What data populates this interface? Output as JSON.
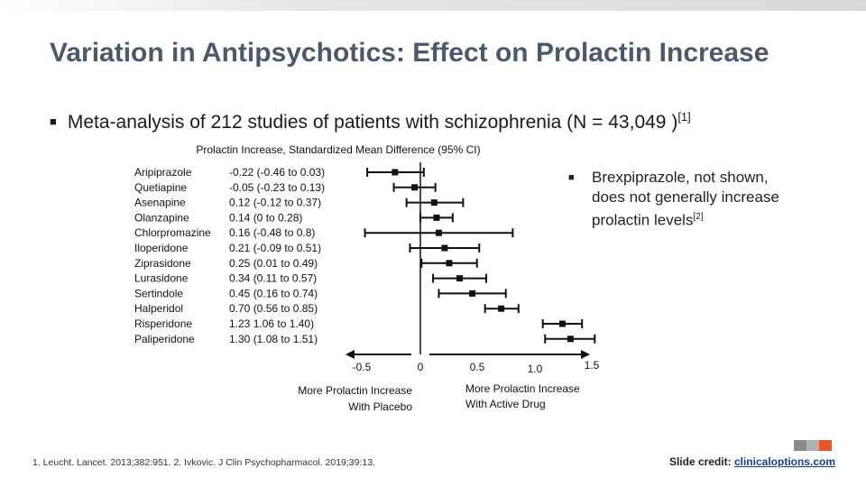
{
  "slide": {
    "title": "Variation in Antipsychotics: Effect on Prolactin Increase",
    "bullet_text": "Meta-analysis of 212 studies of patients with schizophrenia (N = 43,049 )",
    "bullet_ref": "[1]",
    "side_note_text": "Brexpiprazole, not shown, does not generally increase prolactin levels",
    "side_note_ref": "[2]",
    "footnote": "1. Leucht. Lancet. 2013;382:951. 2. Ivkovic. J Clin Psychopharmacol. 2019;39:13.",
    "credit_label": "Slide credit: ",
    "credit_link": "clinicaloptions.com",
    "logo_colors": [
      "#8a8a8a",
      "#b0b0b0",
      "#e8542c"
    ]
  },
  "chart_data": {
    "type": "forest",
    "title": "Prolactin Increase, Standardized Mean Difference (95% CI)",
    "drugs": [
      "Aripiprazole",
      "Quetiapine",
      "Asenapine",
      "Olanzapine",
      "Chlorpromazine",
      "Iloperidone",
      "Ziprasidone",
      "Lurasidone",
      "Sertindole",
      "Halperidol",
      "Risperidone",
      "Paliperidone"
    ],
    "ci_labels": [
      "-0.22 (-0.46 to 0.03)",
      "-0.05 (-0.23 to 0.13)",
      "0.12 (-0.12 to 0.37)",
      "0.14 (0 to 0.28)",
      "0.16 (-0.48 to 0.8)",
      "0.21 (-0.09 to 0.51)",
      "0.25 (0.01 to 0.49)",
      "0.34 (0.11 to 0.57)",
      "0.45 (0.16 to 0.74)",
      "0.70 (0.56 to 0.85)",
      "1.23 1.06 to 1.40)",
      "1.30 (1.08 to 1.51)"
    ],
    "estimates": [
      -0.22,
      -0.05,
      0.12,
      0.14,
      0.16,
      0.21,
      0.25,
      0.34,
      0.45,
      0.7,
      1.23,
      1.3
    ],
    "lower": [
      -0.46,
      -0.23,
      -0.12,
      0,
      -0.48,
      -0.09,
      0.01,
      0.11,
      0.16,
      0.56,
      1.06,
      1.08
    ],
    "upper": [
      0.03,
      0.13,
      0.37,
      0.28,
      0.8,
      0.51,
      0.49,
      0.57,
      0.74,
      0.85,
      1.4,
      1.51
    ],
    "x_ticks": [
      "-0.5",
      "0",
      "0.5",
      "1.0",
      "1.5"
    ],
    "x_tick_values": [
      -0.5,
      0,
      0.5,
      1.0,
      1.5
    ],
    "xlim": [
      -0.5,
      1.5
    ],
    "left_arrow_label": [
      "More Prolactin Increase",
      "With Placebo"
    ],
    "right_arrow_label": [
      "More Prolactin Increase",
      "With Active Drug"
    ],
    "marker_color": "#111111"
  }
}
